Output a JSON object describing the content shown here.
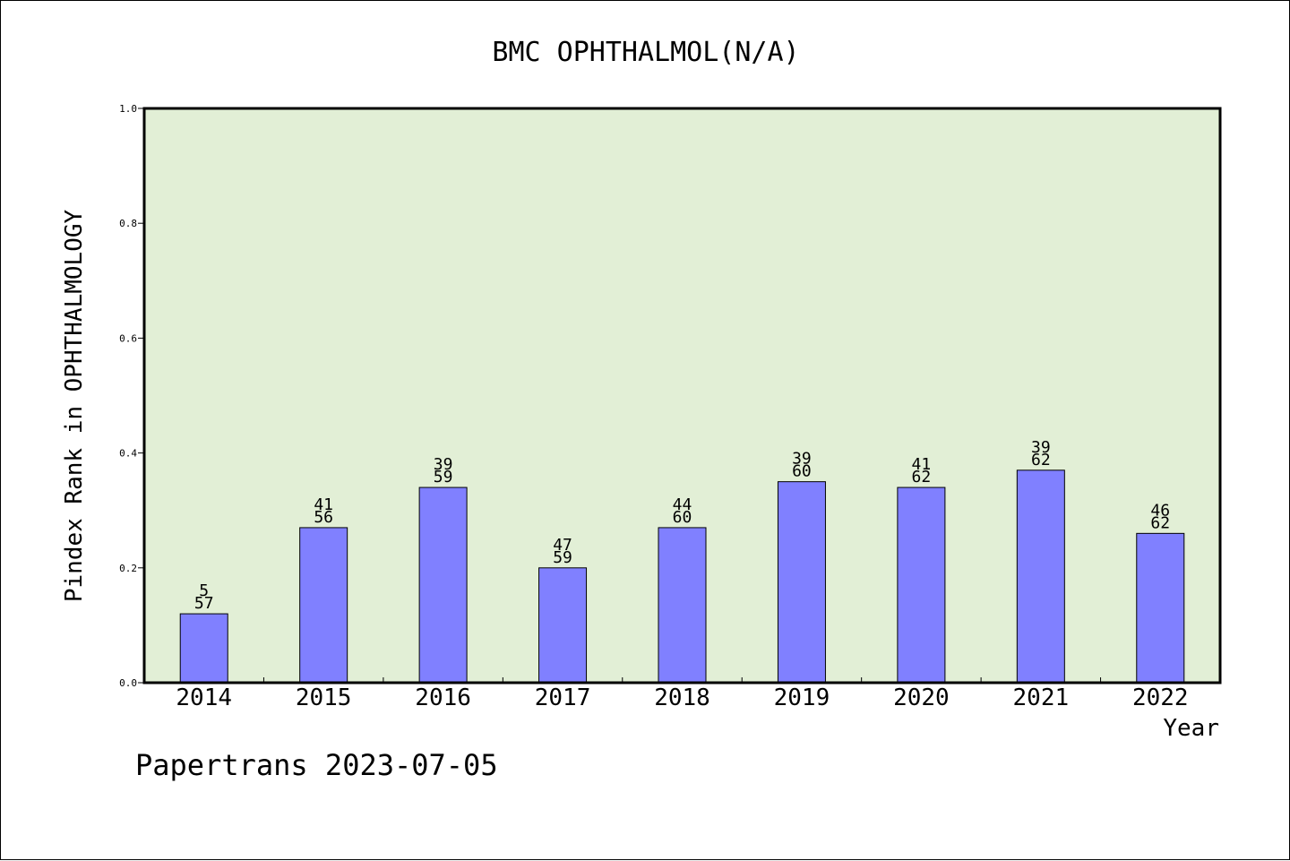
{
  "chart_data": {
    "type": "bar",
    "title": "BMC OPHTHALMOL(N/A)",
    "xlabel": "Year",
    "ylabel": "Pindex Rank in OPHTHALMOLOGY",
    "ylim": [
      0.0,
      1.0
    ],
    "yticks": [
      "0.0",
      "0.2",
      "0.4",
      "0.6",
      "0.8",
      "1.0"
    ],
    "categories": [
      "2014",
      "2015",
      "2016",
      "2017",
      "2018",
      "2019",
      "2020",
      "2021",
      "2022"
    ],
    "values": [
      0.12,
      0.27,
      0.34,
      0.2,
      0.27,
      0.35,
      0.34,
      0.37,
      0.26
    ],
    "label_top": [
      "5",
      "41",
      "39",
      "47",
      "44",
      "39",
      "41",
      "39",
      "46"
    ],
    "label_bottom": [
      "57",
      "56",
      "59",
      "59",
      "60",
      "60",
      "62",
      "62",
      "62"
    ],
    "grid": false,
    "colors": {
      "bar": "#8080ff",
      "plot_background": "#e2efd6",
      "axis": "#000000"
    }
  },
  "footer": {
    "credit": "Papertrans 2023-07-05"
  }
}
